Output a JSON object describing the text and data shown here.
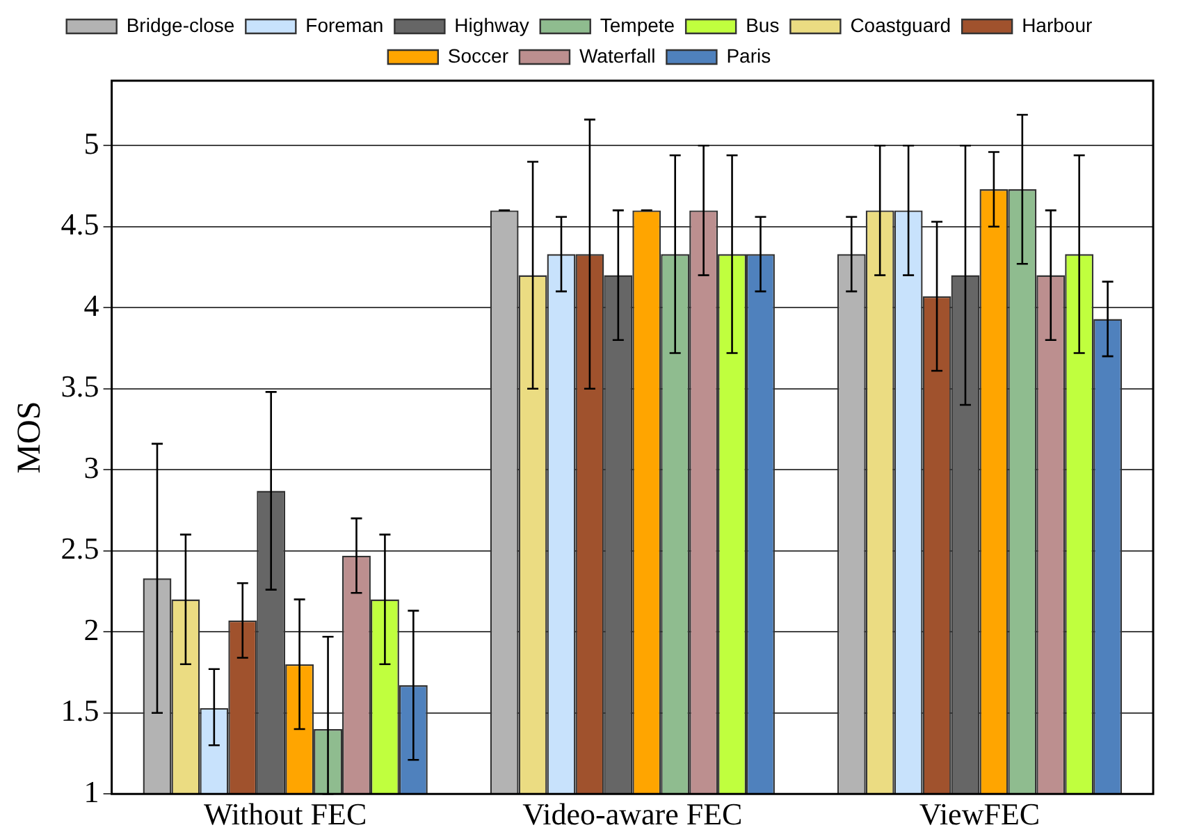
{
  "chart_data": {
    "type": "bar",
    "ylabel": "MOS",
    "categories": [
      "Without FEC",
      "Video-aware FEC",
      "ViewFEC"
    ],
    "ylim": [
      1,
      5.4
    ],
    "yticks": [
      1,
      1.5,
      2,
      2.5,
      3,
      3.5,
      4,
      4.5,
      5
    ],
    "grid": "y",
    "legend": "top",
    "series": [
      {
        "name": "Bridge-close",
        "color": "#b3b3b3",
        "values": [
          2.33,
          4.6,
          4.33
        ],
        "errors": [
          [
            1.5,
            3.16
          ],
          [
            4.6,
            4.6
          ],
          [
            4.1,
            4.56
          ]
        ]
      },
      {
        "name": "Coastguard",
        "color": "#ebdc82",
        "values": [
          2.2,
          4.2,
          4.6
        ],
        "errors": [
          [
            1.8,
            2.6
          ],
          [
            3.5,
            4.9
          ],
          [
            4.2,
            5.0
          ]
        ]
      },
      {
        "name": "Foreman",
        "color": "#c8e2fc",
        "values": [
          1.53,
          4.33,
          4.6
        ],
        "errors": [
          [
            1.3,
            1.77
          ],
          [
            4.1,
            4.56
          ],
          [
            4.2,
            5.0
          ]
        ]
      },
      {
        "name": "Harbour",
        "color": "#a0522d",
        "values": [
          2.07,
          4.33,
          4.07
        ],
        "errors": [
          [
            1.84,
            2.3
          ],
          [
            3.5,
            5.16
          ],
          [
            3.61,
            4.53
          ]
        ]
      },
      {
        "name": "Highway",
        "color": "#666666",
        "values": [
          2.87,
          4.2,
          4.2
        ],
        "errors": [
          [
            2.26,
            3.48
          ],
          [
            3.8,
            4.6
          ],
          [
            3.4,
            5.0
          ]
        ]
      },
      {
        "name": "Soccer",
        "color": "#ffa500",
        "values": [
          1.8,
          4.6,
          4.73
        ],
        "errors": [
          [
            1.4,
            2.2
          ],
          [
            4.6,
            4.6
          ],
          [
            4.5,
            4.96
          ]
        ]
      },
      {
        "name": "Tempete",
        "color": "#8fbc8f",
        "values": [
          1.4,
          4.33,
          4.73
        ],
        "errors": [
          [
            1.0,
            1.97
          ],
          [
            3.72,
            4.94
          ],
          [
            4.27,
            5.19
          ]
        ]
      },
      {
        "name": "Waterfall",
        "color": "#bc8f8f",
        "values": [
          2.47,
          4.6,
          4.2
        ],
        "errors": [
          [
            2.24,
            2.7
          ],
          [
            4.2,
            5.0
          ],
          [
            3.8,
            4.6
          ]
        ]
      },
      {
        "name": "Bus",
        "color": "#c0ff3e",
        "values": [
          2.2,
          4.33,
          4.33
        ],
        "errors": [
          [
            1.8,
            2.6
          ],
          [
            3.72,
            4.94
          ],
          [
            3.72,
            4.94
          ]
        ]
      },
      {
        "name": "Paris",
        "color": "#4f81bd",
        "values": [
          1.67,
          4.33,
          3.93
        ],
        "errors": [
          [
            1.21,
            2.13
          ],
          [
            4.1,
            4.56
          ],
          [
            3.7,
            4.16
          ]
        ]
      }
    ]
  }
}
